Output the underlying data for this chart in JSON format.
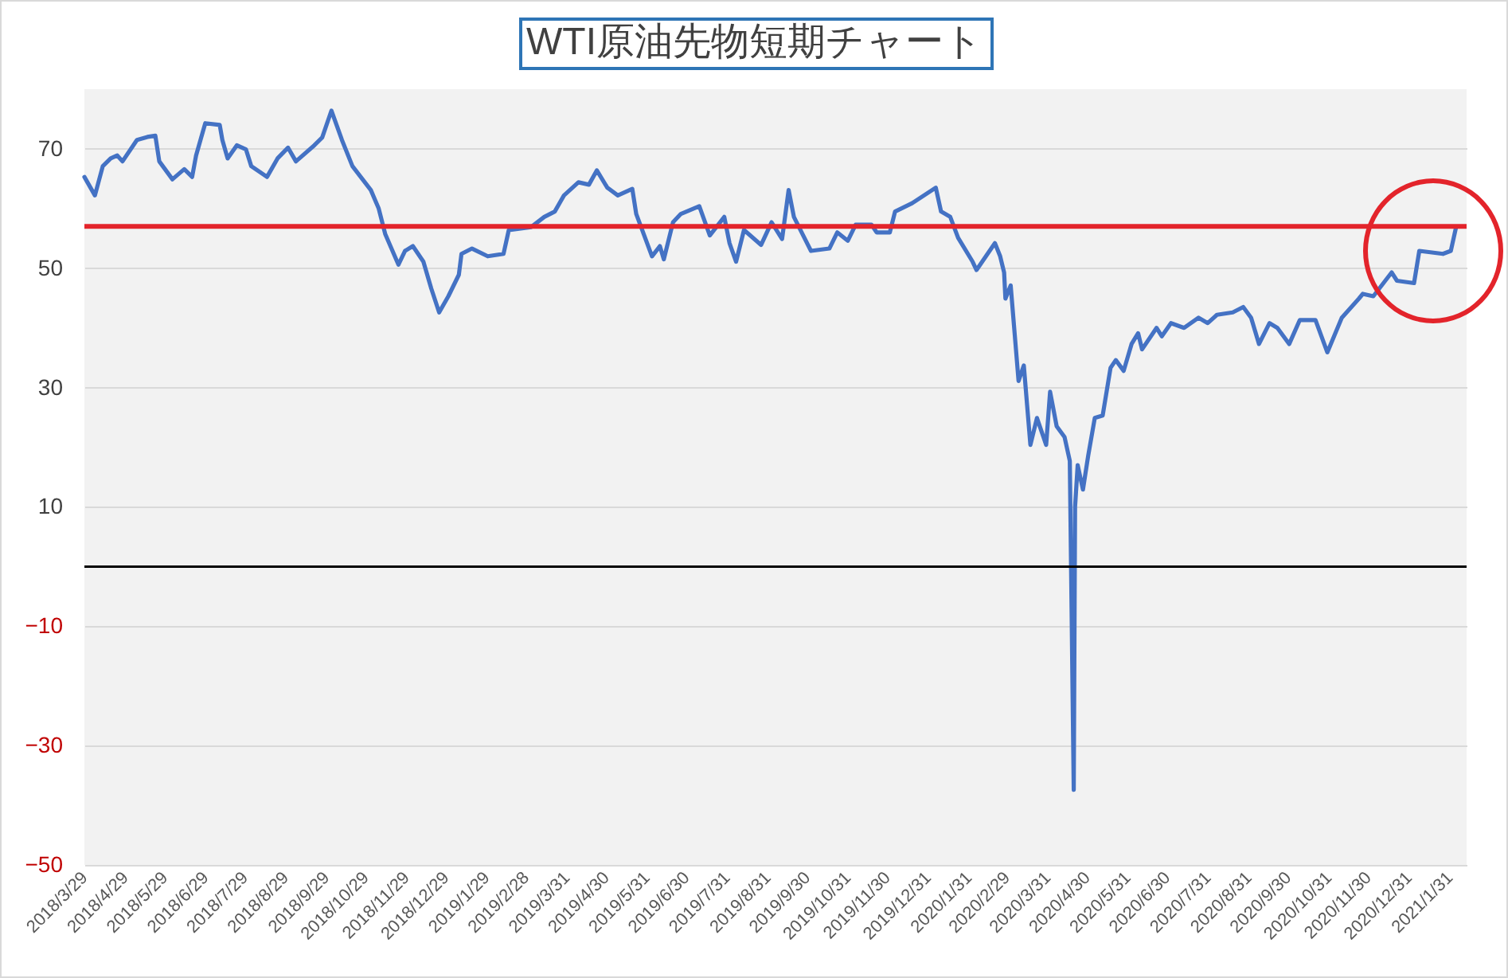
{
  "chart_data": {
    "type": "line",
    "title": "WTI原油先物短期チャート",
    "x": [
      "2018-03-29",
      "2018-04-06",
      "2018-04-12",
      "2018-04-18",
      "2018-04-23",
      "2018-04-27",
      "2018-05-08",
      "2018-05-16",
      "2018-05-22",
      "2018-05-25",
      "2018-06-04",
      "2018-06-13",
      "2018-06-19",
      "2018-06-22",
      "2018-06-29",
      "2018-07-10",
      "2018-07-12",
      "2018-07-16",
      "2018-07-23",
      "2018-07-30",
      "2018-08-03",
      "2018-08-15",
      "2018-08-23",
      "2018-08-31",
      "2018-09-06",
      "2018-09-20",
      "2018-09-26",
      "2018-10-03",
      "2018-10-11",
      "2018-10-19",
      "2018-11-02",
      "2018-11-08",
      "2018-11-13",
      "2018-11-23",
      "2018-11-28",
      "2018-12-04",
      "2018-12-12",
      "2018-12-18",
      "2018-12-24",
      "2018-12-31",
      "2019-01-08",
      "2019-01-10",
      "2019-01-18",
      "2019-01-30",
      "2019-02-11",
      "2019-02-15",
      "2019-03-04",
      "2019-03-14",
      "2019-03-22",
      "2019-03-29",
      "2019-04-09",
      "2019-04-17",
      "2019-04-23",
      "2019-05-01",
      "2019-05-09",
      "2019-05-20",
      "2019-05-23",
      "2019-06-04",
      "2019-06-10",
      "2019-06-13",
      "2019-06-20",
      "2019-06-26",
      "2019-07-10",
      "2019-07-18",
      "2019-07-29",
      "2019-08-02",
      "2019-08-07",
      "2019-08-13",
      "2019-08-26",
      "2019-09-03",
      "2019-09-11",
      "2019-09-16",
      "2019-09-20",
      "2019-10-03",
      "2019-10-17",
      "2019-10-23",
      "2019-10-31",
      "2019-11-06",
      "2019-11-18",
      "2019-11-22",
      "2019-12-02",
      "2019-12-06",
      "2019-12-19",
      "2020-01-06",
      "2020-01-10",
      "2020-01-17",
      "2020-01-23",
      "2020-02-03",
      "2020-02-06",
      "2020-02-20",
      "2020-02-24",
      "2020-02-27",
      "2020-02-28",
      "2020-03-03",
      "2020-03-09",
      "2020-03-13",
      "2020-03-18",
      "2020-03-23",
      "2020-03-30",
      "2020-04-02",
      "2020-04-07",
      "2020-04-13",
      "2020-04-17",
      "2020-04-20",
      "2020-04-21",
      "2020-04-23",
      "2020-04-27",
      "2020-05-01",
      "2020-05-06",
      "2020-05-12",
      "2020-05-18",
      "2020-05-22",
      "2020-05-28",
      "2020-06-03",
      "2020-06-08",
      "2020-06-11",
      "2020-06-22",
      "2020-06-26",
      "2020-07-03",
      "2020-07-13",
      "2020-07-24",
      "2020-07-31",
      "2020-08-07",
      "2020-08-19",
      "2020-08-27",
      "2020-09-02",
      "2020-09-08",
      "2020-09-16",
      "2020-09-22",
      "2020-10-01",
      "2020-10-09",
      "2020-10-21",
      "2020-10-30",
      "2020-11-10",
      "2020-11-23",
      "2020-11-26",
      "2020-12-04",
      "2020-12-18",
      "2020-12-22",
      "2021-01-04",
      "2021-01-08",
      "2021-01-26",
      "2021-02-01",
      "2021-02-05"
    ],
    "series": [
      {
        "color": "#4472c4",
        "values": [
          65.3,
          62.2,
          67.1,
          68.4,
          68.9,
          67.9,
          71.5,
          72,
          72.2,
          67.9,
          64.9,
          66.6,
          65.3,
          68.9,
          74.3,
          74,
          71.5,
          68.4,
          70.6,
          69.9,
          67.1,
          65.3,
          68.4,
          70.2,
          67.9,
          70.6,
          71.9,
          76.4,
          71.5,
          67.1,
          63.1,
          60,
          55.7,
          50.6,
          52.9,
          53.7,
          51.1,
          46.6,
          42.6,
          45.3,
          48.9,
          52.4,
          53.3,
          52,
          52.4,
          56.4,
          56.9,
          58.6,
          59.5,
          62.2,
          64.4,
          64,
          66.4,
          63.5,
          62.2,
          63.3,
          59.1,
          52,
          53.7,
          51.5,
          57.7,
          59.1,
          60.4,
          55.5,
          58.6,
          54.2,
          51.1,
          56.4,
          53.9,
          57.7,
          54.9,
          63.1,
          58.6,
          52.9,
          53.3,
          56,
          54.6,
          57.3,
          57.3,
          56,
          56,
          59.5,
          60.9,
          63.5,
          59.5,
          58.6,
          55.1,
          51.1,
          49.7,
          54.2,
          52,
          49.3,
          44.9,
          47.1,
          31.1,
          33.7,
          20.4,
          24.9,
          20.4,
          29.3,
          23.5,
          21.7,
          17.7,
          -37.4,
          10,
          17,
          12.9,
          18.6,
          24.9,
          25.3,
          33.3,
          34.6,
          32.8,
          37.3,
          39.1,
          36.4,
          40,
          38.6,
          40.8,
          40,
          41.7,
          40.8,
          42.2,
          42.6,
          43.5,
          41.7,
          37.3,
          40.8,
          40,
          37.3,
          41.3,
          41.3,
          35.9,
          41.7,
          44.9,
          45.7,
          45.3,
          49.3,
          47.9,
          47.5,
          52.9,
          52.4,
          52.9,
          56.9
        ]
      }
    ],
    "xlim": [
      "2018-03-29",
      "2021-02-13"
    ],
    "ylim": [
      -50,
      80
    ],
    "xticks": [
      {
        "value": "2018-03-29",
        "label": "2018/3/29"
      },
      {
        "value": "2018-04-29",
        "label": "2018/4/29"
      },
      {
        "value": "2018-05-29",
        "label": "2018/5/29"
      },
      {
        "value": "2018-06-29",
        "label": "2018/6/29"
      },
      {
        "value": "2018-07-29",
        "label": "2018/7/29"
      },
      {
        "value": "2018-08-29",
        "label": "2018/8/29"
      },
      {
        "value": "2018-09-29",
        "label": "2018/9/29"
      },
      {
        "value": "2018-10-29",
        "label": "2018/10/29"
      },
      {
        "value": "2018-11-29",
        "label": "2018/11/29"
      },
      {
        "value": "2018-12-29",
        "label": "2018/12/29"
      },
      {
        "value": "2019-01-29",
        "label": "2019/1/29"
      },
      {
        "value": "2019-02-28",
        "label": "2019/2/28"
      },
      {
        "value": "2019-03-31",
        "label": "2019/3/31"
      },
      {
        "value": "2019-04-30",
        "label": "2019/4/30"
      },
      {
        "value": "2019-05-31",
        "label": "2019/5/31"
      },
      {
        "value": "2019-06-30",
        "label": "2019/6/30"
      },
      {
        "value": "2019-07-31",
        "label": "2019/7/31"
      },
      {
        "value": "2019-08-31",
        "label": "2019/8/31"
      },
      {
        "value": "2019-09-30",
        "label": "2019/9/30"
      },
      {
        "value": "2019-10-31",
        "label": "2019/10/31"
      },
      {
        "value": "2019-11-30",
        "label": "2019/11/30"
      },
      {
        "value": "2019-12-31",
        "label": "2019/12/31"
      },
      {
        "value": "2020-01-31",
        "label": "2020/1/31"
      },
      {
        "value": "2020-02-29",
        "label": "2020/2/29"
      },
      {
        "value": "2020-03-31",
        "label": "2020/3/31"
      },
      {
        "value": "2020-04-30",
        "label": "2020/4/30"
      },
      {
        "value": "2020-05-31",
        "label": "2020/5/31"
      },
      {
        "value": "2020-06-30",
        "label": "2020/6/30"
      },
      {
        "value": "2020-07-31",
        "label": "2020/7/31"
      },
      {
        "value": "2020-08-31",
        "label": "2020/8/31"
      },
      {
        "value": "2020-09-30",
        "label": "2020/9/30"
      },
      {
        "value": "2020-10-31",
        "label": "2020/10/31"
      },
      {
        "value": "2020-11-30",
        "label": "2020/11/30"
      },
      {
        "value": "2020-12-31",
        "label": "2020/12/31"
      },
      {
        "value": "2021-01-31",
        "label": "2021/1/31"
      }
    ],
    "yticks": [
      -50,
      -30,
      -10,
      10,
      30,
      50,
      70
    ],
    "grid": "y",
    "line_style": "solid",
    "ref_lines": [
      {
        "axis": "y",
        "value": 0,
        "color": "#000000"
      },
      {
        "axis": "y",
        "value": 57,
        "color": "#e3242b"
      }
    ]
  }
}
